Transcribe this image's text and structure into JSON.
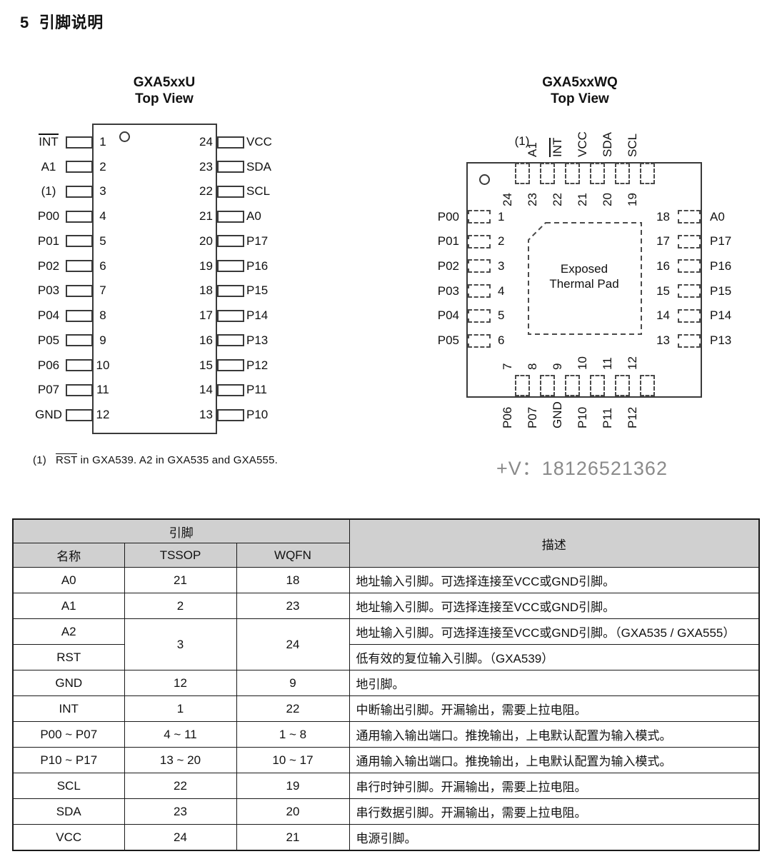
{
  "page": {
    "section_number": "5",
    "section_title": "引脚说明",
    "watermark": "+V：18126521362",
    "footnote": {
      "prefix": "(1)",
      "overlined": "RST",
      "rest": " in GXA539.  A2 in GXA535 and GXA555."
    }
  },
  "colors": {
    "line": "#3a3a3a",
    "table_header_bg": "#d0d0d0",
    "watermark_gray": "#8a8a8a"
  },
  "tssop": {
    "title": "GXA5xxU",
    "subtitle": "Top View",
    "left_pins": [
      {
        "label": "INT",
        "overline": true,
        "num": "1"
      },
      {
        "label": "A1",
        "num": "2"
      },
      {
        "label": "(1)",
        "num": "3"
      },
      {
        "label": "P00",
        "num": "4"
      },
      {
        "label": "P01",
        "num": "5"
      },
      {
        "label": "P02",
        "num": "6"
      },
      {
        "label": "P03",
        "num": "7"
      },
      {
        "label": "P04",
        "num": "8"
      },
      {
        "label": "P05",
        "num": "9"
      },
      {
        "label": "P06",
        "num": "10"
      },
      {
        "label": "P07",
        "num": "11"
      },
      {
        "label": "GND",
        "num": "12"
      }
    ],
    "right_pins": [
      {
        "label": "VCC",
        "num": "24"
      },
      {
        "label": "SDA",
        "num": "23"
      },
      {
        "label": "SCL",
        "num": "22"
      },
      {
        "label": "A0",
        "num": "21"
      },
      {
        "label": "P17",
        "num": "20"
      },
      {
        "label": "P16",
        "num": "19"
      },
      {
        "label": "P15",
        "num": "18"
      },
      {
        "label": "P14",
        "num": "17"
      },
      {
        "label": "P13",
        "num": "16"
      },
      {
        "label": "P12",
        "num": "15"
      },
      {
        "label": "P11",
        "num": "14"
      },
      {
        "label": "P10",
        "num": "13"
      }
    ]
  },
  "wqfn": {
    "title": "GXA5xxWQ",
    "subtitle": "Top View",
    "thermal_pad_line1": "Exposed",
    "thermal_pad_line2": "Thermal Pad",
    "top_pins": [
      {
        "label": "(1)",
        "num": "24",
        "horizontal": true
      },
      {
        "label": "A1",
        "num": "23"
      },
      {
        "label": "INT",
        "num": "22",
        "overline": true
      },
      {
        "label": "VCC",
        "num": "21"
      },
      {
        "label": "SDA",
        "num": "20"
      },
      {
        "label": "SCL",
        "num": "19"
      }
    ],
    "left_pins": [
      {
        "label": "P00",
        "num": "1"
      },
      {
        "label": "P01",
        "num": "2"
      },
      {
        "label": "P02",
        "num": "3"
      },
      {
        "label": "P03",
        "num": "4"
      },
      {
        "label": "P04",
        "num": "5"
      },
      {
        "label": "P05",
        "num": "6"
      }
    ],
    "right_pins": [
      {
        "label": "A0",
        "num": "18"
      },
      {
        "label": "P17",
        "num": "17"
      },
      {
        "label": "P16",
        "num": "16"
      },
      {
        "label": "P15",
        "num": "15"
      },
      {
        "label": "P14",
        "num": "14"
      },
      {
        "label": "P13",
        "num": "13"
      }
    ],
    "bottom_pins": [
      {
        "label": "P06",
        "num": "7"
      },
      {
        "label": "P07",
        "num": "8"
      },
      {
        "label": "GND",
        "num": "9"
      },
      {
        "label": "P10",
        "num": "10"
      },
      {
        "label": "P11",
        "num": "11"
      },
      {
        "label": "P12",
        "num": "12"
      }
    ]
  },
  "table": {
    "header": {
      "pin_group": "引脚",
      "desc": "描述",
      "name": "名称",
      "tssop": "TSSOP",
      "wqfn": "WQFN"
    },
    "rows": [
      {
        "name": "A0",
        "tssop": "21",
        "wqfn": "18",
        "desc": "地址输入引脚。可选择连接至VCC或GND引脚。"
      },
      {
        "name": "A1",
        "tssop": "2",
        "wqfn": "23",
        "desc": "地址输入引脚。可选择连接至VCC或GND引脚。"
      },
      {
        "name": "A2",
        "tssop": "3",
        "wqfn": "24",
        "tssop_rowspan": 2,
        "wqfn_rowspan": 2,
        "desc": "地址输入引脚。可选择连接至VCC或GND引脚。（GXA535 / GXA555）"
      },
      {
        "name": "RST",
        "tssop": null,
        "wqfn": null,
        "desc": "低有效的复位输入引脚。（GXA539）"
      },
      {
        "name": "GND",
        "tssop": "12",
        "wqfn": "9",
        "desc": "地引脚。"
      },
      {
        "name": "INT",
        "tssop": "1",
        "wqfn": "22",
        "desc": "中断输出引脚。开漏输出，需要上拉电阻。"
      },
      {
        "name": "P00 ~ P07",
        "tssop": "4 ~ 11",
        "wqfn": "1 ~ 8",
        "desc": "通用输入输出端口。推挽输出，上电默认配置为输入模式。"
      },
      {
        "name": "P10 ~ P17",
        "tssop": "13 ~ 20",
        "wqfn": "10 ~ 17",
        "desc": "通用输入输出端口。推挽输出，上电默认配置为输入模式。"
      },
      {
        "name": "SCL",
        "tssop": "22",
        "wqfn": "19",
        "desc": "串行时钟引脚。开漏输出，需要上拉电阻。"
      },
      {
        "name": "SDA",
        "tssop": "23",
        "wqfn": "20",
        "desc": "串行数据引脚。开漏输出，需要上拉电阻。"
      },
      {
        "name": "VCC",
        "tssop": "24",
        "wqfn": "21",
        "desc": "电源引脚。"
      }
    ]
  }
}
